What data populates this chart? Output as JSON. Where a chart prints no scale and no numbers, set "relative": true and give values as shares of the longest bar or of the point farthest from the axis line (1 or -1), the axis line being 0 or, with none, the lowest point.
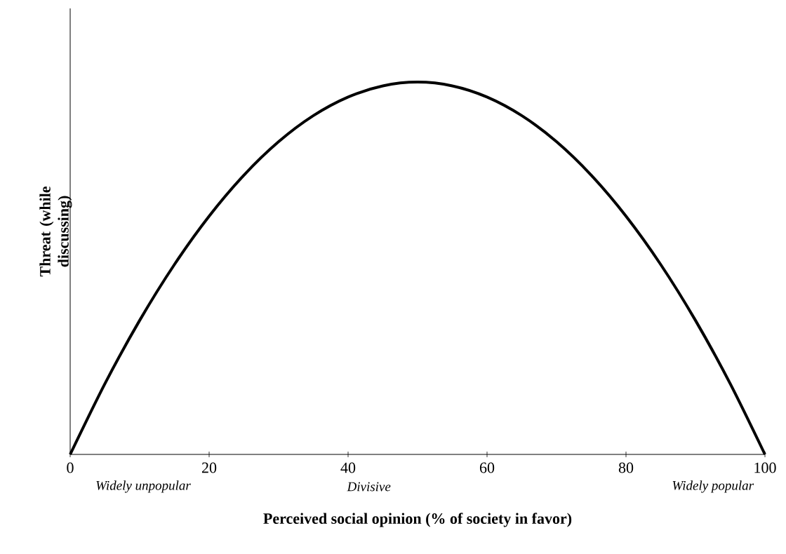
{
  "chart_data": {
    "type": "line",
    "relative": true,
    "xlabel": "Perceived social opinion (% of society in favor)",
    "ylabel": "Threat (while discussing)",
    "color": "#000000",
    "x": [
      0,
      5,
      10,
      15,
      20,
      25,
      30,
      35,
      40,
      45,
      50,
      55,
      60,
      65,
      70,
      75,
      80,
      85,
      90,
      95,
      100
    ],
    "values": [
      0,
      0.19,
      0.36,
      0.51,
      0.64,
      0.75,
      0.84,
      0.91,
      0.96,
      0.99,
      1,
      0.99,
      0.96,
      0.91,
      0.84,
      0.75,
      0.64,
      0.51,
      0.36,
      0.19,
      0
    ],
    "xlim": [
      0,
      100
    ],
    "xticks": [
      0,
      20,
      40,
      60,
      80,
      100
    ],
    "annotations": [
      "Widely unpopular",
      "Divisive",
      "Widely popular"
    ]
  }
}
